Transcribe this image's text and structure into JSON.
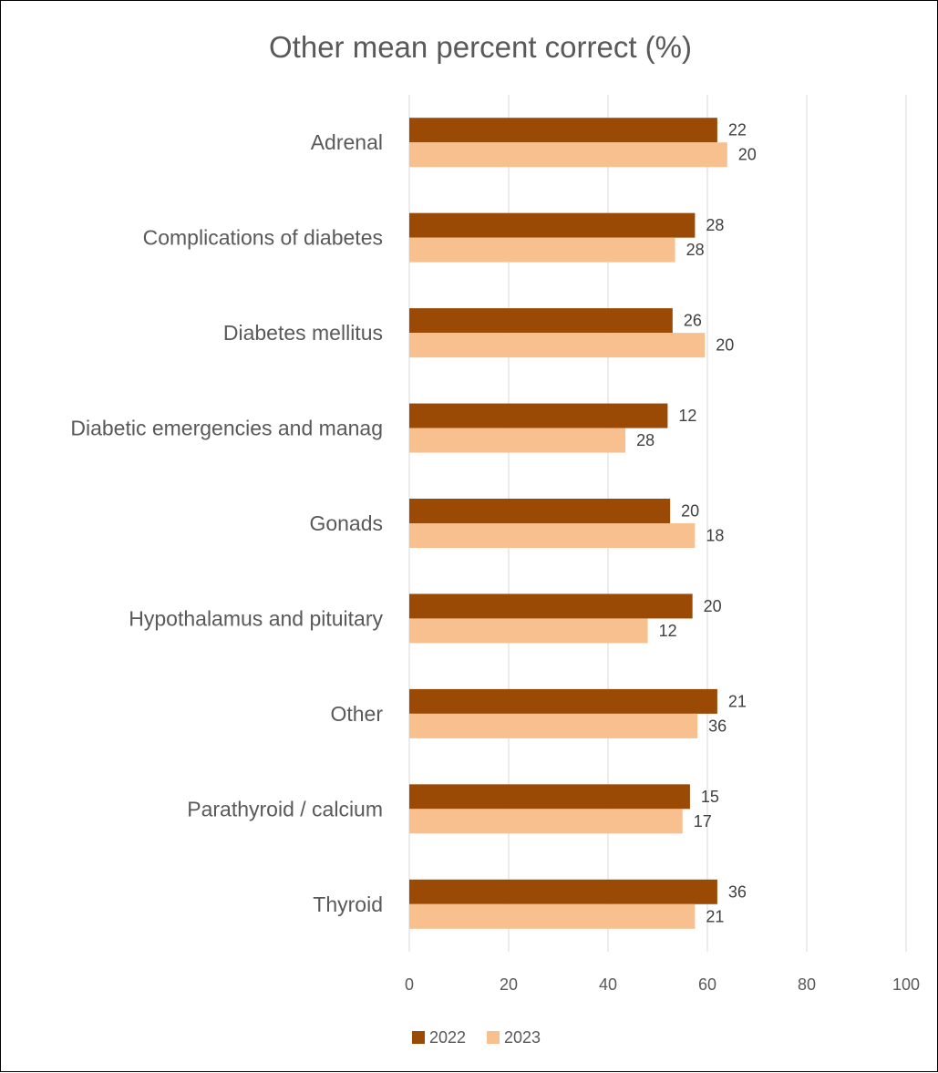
{
  "chart_data": {
    "type": "bar",
    "orientation": "horizontal",
    "title": "Other mean percent correct (%)",
    "xlabel": "",
    "ylabel": "",
    "xlim": [
      0,
      100
    ],
    "x_ticks": [
      0,
      20,
      40,
      60,
      80,
      100
    ],
    "grid": "vertical",
    "legend_position": "bottom",
    "categories": [
      "Adrenal",
      "Complications of diabetes",
      "Diabetes mellitus",
      "Diabetic emergencies and manag",
      "Gonads",
      "Hypothalamus and pituitary",
      "Other",
      "Parathyroid / calcium",
      "Thyroid"
    ],
    "series": [
      {
        "name": "2022",
        "color": "#9a4a05",
        "values": [
          62,
          57.5,
          53,
          52,
          52.5,
          57,
          62,
          56.5,
          62
        ],
        "data_labels": [
          "22",
          "28",
          "26",
          "12",
          "20",
          "20",
          "21",
          "15",
          "36"
        ]
      },
      {
        "name": "2023",
        "color": "#f9c08f",
        "values": [
          64,
          53.5,
          59.5,
          43.5,
          57.5,
          48,
          58,
          55,
          57.5
        ],
        "data_labels": [
          "20",
          "28",
          "20",
          "28",
          "18",
          "12",
          "36",
          "17",
          "21"
        ]
      }
    ]
  }
}
